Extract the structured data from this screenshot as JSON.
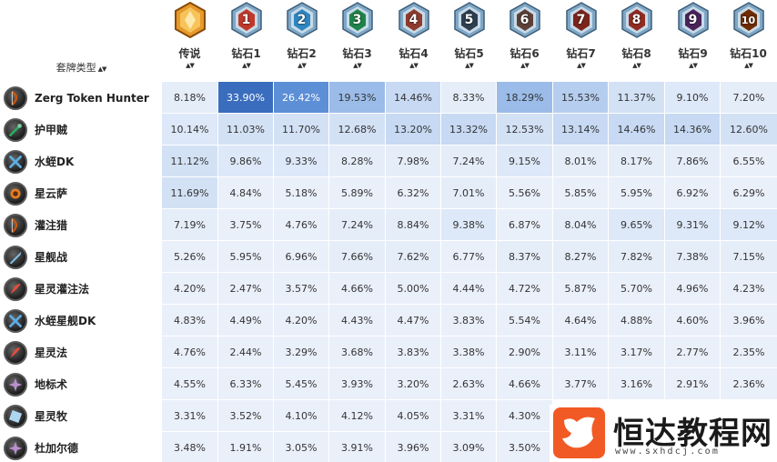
{
  "header": {
    "deck_type_label": "套牌类型",
    "sort_icon": "sort-up-down-icon",
    "ranks": [
      {
        "name": "传说",
        "badge": "",
        "type": "legend"
      },
      {
        "name": "钻石1",
        "badge": "1",
        "color": "#c0392b"
      },
      {
        "name": "钻石2",
        "badge": "2",
        "color": "#2e86c1"
      },
      {
        "name": "钻石3",
        "badge": "3",
        "color": "#1e8449"
      },
      {
        "name": "钻石4",
        "badge": "4",
        "color": "#8e3b2e"
      },
      {
        "name": "钻石5",
        "badge": "5",
        "color": "#2c3e50"
      },
      {
        "name": "钻石6",
        "badge": "6",
        "color": "#5d4037"
      },
      {
        "name": "钻石7",
        "badge": "7",
        "color": "#7b241c"
      },
      {
        "name": "钻石8",
        "badge": "8",
        "color": "#922b21"
      },
      {
        "name": "钻石9",
        "badge": "9",
        "color": "#4a235a"
      },
      {
        "name": "钻石10",
        "badge": "10",
        "color": "#6e2c00"
      }
    ]
  },
  "rows": [
    {
      "deck": "Zerg Token Hunter",
      "icon": "hunter-bow-icon",
      "icon_color": "#d35400",
      "values": [
        "8.18%",
        "33.90%",
        "26.42%",
        "19.53%",
        "14.46%",
        "8.33%",
        "18.29%",
        "15.53%",
        "11.37%",
        "9.10%",
        "7.20%"
      ]
    },
    {
      "deck": "护甲贼",
      "icon": "rogue-dagger-icon",
      "icon_color": "#27ae60",
      "values": [
        "10.14%",
        "11.03%",
        "11.70%",
        "12.68%",
        "13.20%",
        "13.32%",
        "12.53%",
        "13.14%",
        "14.46%",
        "14.36%",
        "12.60%"
      ]
    },
    {
      "deck": "水蛭DK",
      "icon": "death-knight-icon",
      "icon_color": "#5dade2",
      "values": [
        "11.12%",
        "9.86%",
        "9.33%",
        "8.28%",
        "7.98%",
        "7.24%",
        "9.15%",
        "8.01%",
        "8.17%",
        "7.86%",
        "6.55%"
      ]
    },
    {
      "deck": "星云萨",
      "icon": "shaman-totem-icon",
      "icon_color": "#e67e22",
      "values": [
        "11.69%",
        "4.84%",
        "5.18%",
        "5.89%",
        "6.32%",
        "7.01%",
        "5.56%",
        "5.85%",
        "5.95%",
        "6.92%",
        "6.29%"
      ]
    },
    {
      "deck": "灌注猎",
      "icon": "hunter-bow-icon",
      "icon_color": "#d35400",
      "values": [
        "7.19%",
        "3.75%",
        "4.76%",
        "7.24%",
        "8.84%",
        "9.38%",
        "6.87%",
        "8.04%",
        "9.65%",
        "9.31%",
        "9.12%"
      ]
    },
    {
      "deck": "星舰战",
      "icon": "warrior-sword-icon",
      "icon_color": "#85c1e9",
      "values": [
        "5.26%",
        "5.95%",
        "6.96%",
        "7.66%",
        "7.62%",
        "6.77%",
        "8.37%",
        "8.27%",
        "7.82%",
        "7.38%",
        "7.15%"
      ]
    },
    {
      "deck": "星灵灌注法",
      "icon": "mage-staff-icon",
      "icon_color": "#e74c3c",
      "values": [
        "4.20%",
        "2.47%",
        "3.57%",
        "4.66%",
        "5.00%",
        "4.44%",
        "4.72%",
        "5.87%",
        "5.70%",
        "4.96%",
        "4.23%"
      ]
    },
    {
      "deck": "水蛭星舰DK",
      "icon": "death-knight-icon",
      "icon_color": "#5dade2",
      "values": [
        "4.83%",
        "4.49%",
        "4.20%",
        "4.43%",
        "4.47%",
        "3.83%",
        "5.54%",
        "4.64%",
        "4.88%",
        "4.60%",
        "3.96%"
      ]
    },
    {
      "deck": "星灵法",
      "icon": "mage-staff-icon",
      "icon_color": "#e74c3c",
      "values": [
        "4.76%",
        "2.44%",
        "3.29%",
        "3.68%",
        "3.83%",
        "3.38%",
        "2.90%",
        "3.11%",
        "3.17%",
        "2.77%",
        "2.35%"
      ]
    },
    {
      "deck": "地标术",
      "icon": "warlock-icon",
      "icon_color": "#bb8fce",
      "values": [
        "4.55%",
        "6.33%",
        "5.45%",
        "3.93%",
        "3.20%",
        "2.63%",
        "4.66%",
        "3.77%",
        "3.16%",
        "2.91%",
        "2.36%"
      ]
    },
    {
      "deck": "星灵牧",
      "icon": "priest-icon",
      "icon_color": "#aed6f1",
      "values": [
        "3.31%",
        "3.52%",
        "4.10%",
        "4.12%",
        "4.05%",
        "3.31%",
        "4.30%",
        "",
        "",
        "",
        ""
      ]
    },
    {
      "deck": "杜加尔德",
      "icon": "warlock-icon",
      "icon_color": "#bb8fce",
      "values": [
        "3.48%",
        "1.91%",
        "3.05%",
        "3.91%",
        "3.96%",
        "3.09%",
        "3.50%",
        "",
        "",
        "",
        ""
      ]
    }
  ],
  "watermark": {
    "title": "恒达教程网",
    "url": "www.sxhdcj.com",
    "logo_icon": "bird-logo-icon"
  }
}
